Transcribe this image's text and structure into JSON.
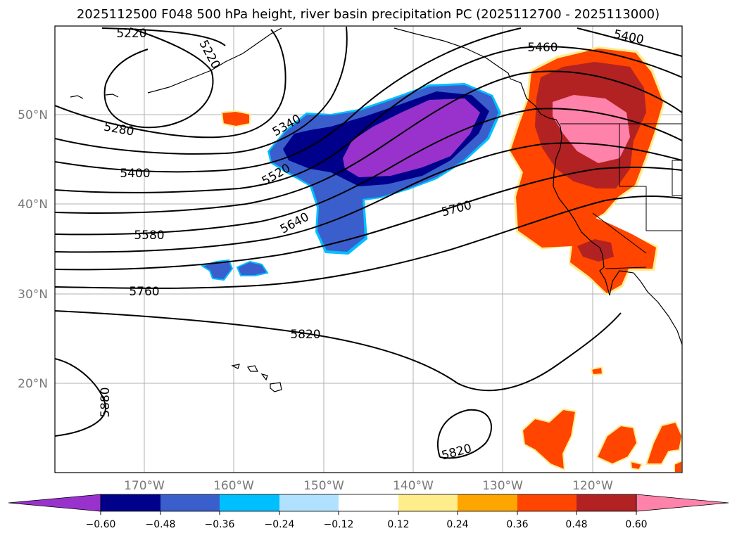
{
  "title": "2025112500 F048 500 hPa height, river basin precipitation PC (2025112700 - 2025113000)",
  "map": {
    "lat_labels": [
      "50°N",
      "40°N",
      "30°N",
      "20°N"
    ],
    "lon_labels": [
      "170°W",
      "160°W",
      "150°W",
      "140°W",
      "130°W",
      "120°W"
    ],
    "contour_labels": [
      "5220",
      "5220",
      "5400",
      "5460",
      "5280",
      "5340",
      "5400",
      "5520",
      "5580",
      "5640",
      "5700",
      "5760",
      "5820",
      "5820",
      "5880"
    ],
    "gridlines": true
  },
  "colorbar": {
    "ticks": [
      "−0.60",
      "−0.48",
      "−0.36",
      "−0.24",
      "−0.12",
      "0.12",
      "0.24",
      "0.36",
      "0.48",
      "0.60"
    ],
    "colors": [
      "#9932cc",
      "#00008b",
      "#3a5fcd",
      "#00bfff",
      "#b0e2ff",
      "#ffffff",
      "#ffec8b",
      "#ffa500",
      "#ff4500",
      "#b22222",
      "#ff82ab"
    ]
  }
}
